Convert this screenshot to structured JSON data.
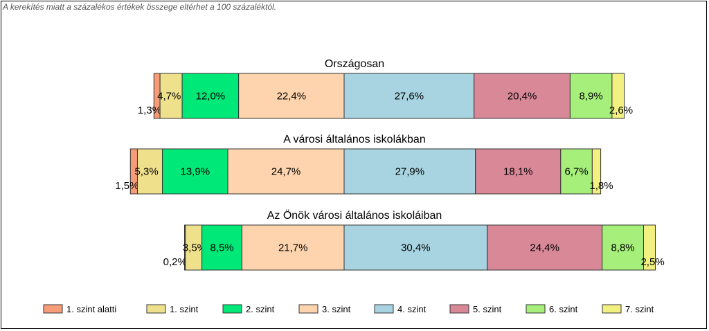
{
  "note": "A kerekítés miatt a  százalékos értékek összege eltérhet a 100 százaléktól.",
  "chart_data": {
    "type": "bar",
    "orientation": "horizontal",
    "stacked": true,
    "xlim": [
      0,
      100
    ],
    "legend_position": "bottom",
    "categories": [
      "1. szint alatti",
      "1. szint",
      "2. szint",
      "3. szint",
      "4. szint",
      "5. szint",
      "6. szint",
      "7. szint"
    ],
    "colors": [
      "#F79C79",
      "#EFE08C",
      "#00E878",
      "#FDD4AD",
      "#A7D4E0",
      "#D98898",
      "#A6EF7A",
      "#F2F080"
    ],
    "rows": [
      {
        "title": "Országosan",
        "values": [
          1.3,
          4.7,
          12.0,
          22.4,
          27.6,
          20.4,
          8.9,
          2.6
        ],
        "labels": [
          "1,3%",
          "4,7%",
          "12,0%",
          "22,4%",
          "27,6%",
          "20,4%",
          "8,9%",
          "2,6%"
        ]
      },
      {
        "title": "A városi általános iskolákban",
        "values": [
          1.5,
          5.3,
          13.9,
          24.7,
          27.9,
          18.1,
          6.7,
          1.8
        ],
        "labels": [
          "1,5%",
          "5,3%",
          "13,9%",
          "24,7%",
          "27,9%",
          "18,1%",
          "6,7%",
          "1,8%"
        ]
      },
      {
        "title": "Az Önök városi általános iskoláiban",
        "values": [
          0.2,
          3.5,
          8.5,
          21.7,
          30.4,
          24.4,
          8.8,
          2.5
        ],
        "labels": [
          "0,2%",
          "3,5%",
          "8,5%",
          "21,7%",
          "30,4%",
          "24,4%",
          "8,8%",
          "2,5%"
        ]
      }
    ]
  }
}
